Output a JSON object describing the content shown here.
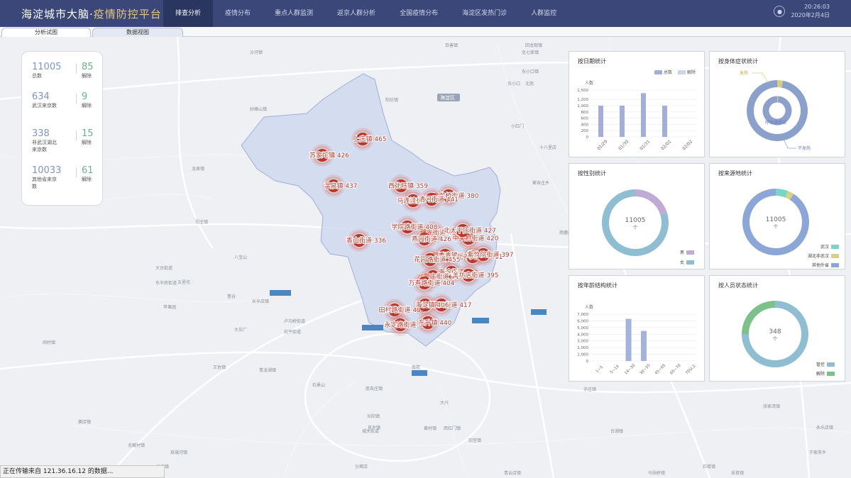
{
  "header": {
    "title_main": "海淀城市大脑·",
    "title_accent": "疫情防控平台",
    "nav": [
      "排查分析",
      "疫情分布",
      "重点人群监测",
      "返京人群分析",
      "全国疫情分布",
      "海淀区发热门诊",
      "人群监控"
    ],
    "time": "20:26:03",
    "date": "2020年2月4日",
    "icon": "user-icon"
  },
  "tabs": [
    "分析试图",
    "数据视图"
  ],
  "summary": [
    {
      "value": "11005",
      "label": "总数",
      "released": "85",
      "released_label": "解除"
    },
    {
      "value": "634",
      "label": "武汉来京数",
      "released": "9",
      "released_label": "解除"
    },
    {
      "value": "338",
      "label": "非武汉湖北来京数",
      "released": "15",
      "released_label": "解除"
    },
    {
      "value": "10033",
      "label": "其他省来京数",
      "released": "61",
      "released_label": "解除"
    }
  ],
  "map": {
    "clusters": [
      "苏家坨镇 426",
      "上庄镇 465",
      "温泉镇 437",
      "西北旺镇 359",
      "马连洼街道 398",
      "青龙桥街道 380",
      "香山街道 336",
      "清河街道 441",
      "曙光街道 430",
      "学院路街道 408",
      "燕园街道 426",
      "中关村街道 420",
      "四季青镇 423",
      "海淀街道 400",
      "八里庄街道 418",
      "万寿路街道 404",
      "甘家口街道 417",
      "北下关街道 411",
      "紫竹院街道 397",
      "羊坊店街道 395",
      "田村路街道 408",
      "花园路街道 455",
      "北太平庄街道 427",
      "永定路街道 412",
      "东升镇 440",
      "海淀镇 406"
    ],
    "place_labels": [
      "海淀区",
      "百善镇",
      "沙河镇",
      "北七家镇",
      "东小口镇",
      "阳坊镇",
      "妙峰山镇",
      "大台街道",
      "东辛房街道",
      "长辛店镇",
      "宛平街道",
      "卢沟桥街道",
      "大灰厂",
      "长阳镇",
      "良乡镇",
      "黄村镇",
      "亦庄镇",
      "台湖镇",
      "宋庄镇",
      "永顺镇",
      "豆各庄乡",
      "金盏乡",
      "孙河乡",
      "崔各庄乡",
      "王四营乡",
      "马驹桥镇",
      "西红门镇",
      "旧宫镇",
      "青云店镇",
      "采育镇",
      "张家湾镇",
      "潞城镇",
      "永乐店镇",
      "于家务乡",
      "庞各庄镇",
      "北臧村镇",
      "长沟镇",
      "琉璃河镇",
      "窦店镇",
      "阎村镇",
      "城关街道",
      "石楼镇",
      "八里桥",
      "通州",
      "北苑",
      "南磨房",
      "十八里店",
      "东坝",
      "三间房",
      "高碑店",
      "管庄",
      "小红门",
      "南苑",
      "大兴",
      "沙窝店",
      "鲁谷",
      "八宝山",
      "五里坨",
      "苹果园",
      "军庄镇",
      "龙泉镇",
      "王佐镇",
      "青龙湖镇",
      "石景山",
      "回龙观镇",
      "东小口"
    ]
  },
  "panels": {
    "by_date": {
      "title": "按日期统计",
      "ylabel": "人数",
      "legend": [
        "总数",
        "解除"
      ],
      "colors": [
        "#a4aedb",
        "#c8d4e9"
      ]
    },
    "by_symptom": {
      "title": "按身体症状统计",
      "labels": [
        "发热",
        "呼吸道感染",
        "不发热"
      ],
      "colors": [
        "#d9cd82",
        "#8ca0cc"
      ]
    },
    "by_gender": {
      "title": "按性别统计",
      "center_value": "11005",
      "center_unit": "个",
      "legend": [
        "男",
        "女"
      ],
      "colors": [
        "#c0abd6",
        "#8fbdd2"
      ]
    },
    "by_origin": {
      "title": "按来源地统计",
      "center_value": "11005",
      "center_unit": "个",
      "legend": [
        "武汉",
        "湖北非武汉",
        "其他外省"
      ],
      "colors": [
        "#7cd4c6",
        "#d9cf86",
        "#8ca6d8"
      ]
    },
    "by_age": {
      "title": "按年龄结构统计",
      "ylabel": "人数",
      "color": "#a4b3db"
    },
    "by_status": {
      "title": "按人员状态统计",
      "center_value": "348",
      "center_unit": "个",
      "legend": [
        "管控",
        "解除"
      ],
      "colors": [
        "#8fbdd2",
        "#7dc08a"
      ]
    }
  },
  "chart_data": [
    {
      "type": "bar",
      "title": "按日期统计",
      "ylabel": "人数",
      "categories": [
        "01/29",
        "01/30",
        "01/31",
        "02/01",
        "02/02"
      ],
      "series": [
        {
          "name": "总数",
          "values": [
            1000,
            1000,
            1400,
            1000,
            0
          ]
        },
        {
          "name": "解除",
          "values": [
            0,
            0,
            0,
            0,
            0
          ]
        }
      ],
      "yticks": [
        "0",
        "200",
        "400",
        "600",
        "800",
        "1,000",
        "1,200",
        "1,500"
      ],
      "ylim": [
        0,
        1500
      ]
    },
    {
      "type": "pie",
      "title": "按身体症状统计",
      "labels": [
        "发热",
        "呼吸道感染",
        "不发热"
      ],
      "values": [
        3,
        1,
        96
      ]
    },
    {
      "type": "pie",
      "title": "按性别统计",
      "labels": [
        "男",
        "女"
      ],
      "values": [
        20,
        80
      ]
    },
    {
      "type": "pie",
      "title": "按来源地统计",
      "labels": [
        "武汉",
        "湖北非武汉",
        "其他外省"
      ],
      "values": [
        6,
        3,
        91
      ]
    },
    {
      "type": "bar",
      "title": "按年龄结构统计",
      "ylabel": "人数",
      "categories": [
        "1~5",
        "5~14",
        "14~30",
        "30~55",
        "45~65",
        "65~70",
        "70以上"
      ],
      "values": [
        0,
        0,
        6300,
        4500,
        0,
        0,
        0
      ],
      "yticks": [
        "0",
        "1,000",
        "2,000",
        "3,000",
        "4,000",
        "5,000",
        "6,000",
        "7,000"
      ],
      "ylim": [
        0,
        7000
      ]
    },
    {
      "type": "pie",
      "title": "按人员状态统计",
      "labels": [
        "管控",
        "解除"
      ],
      "values": [
        75,
        25
      ]
    }
  ],
  "status_bar": "正在传输来自 121.36.16.12 的数据..."
}
